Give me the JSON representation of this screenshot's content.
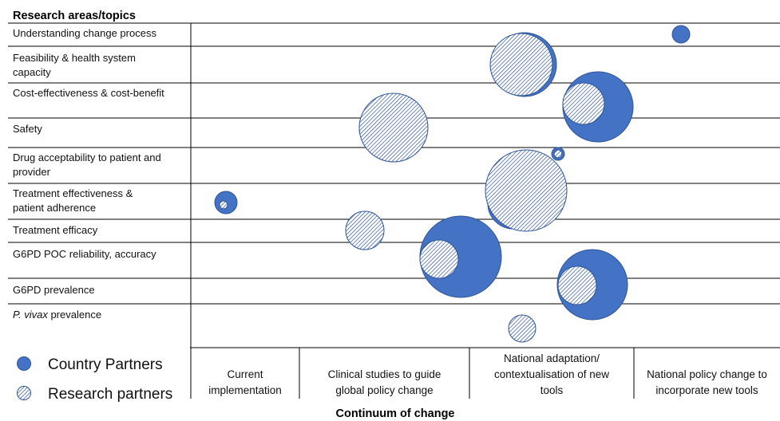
{
  "chart_data": {
    "type": "bubble",
    "title": "Research areas/topics",
    "xlabel": "Continuum of change",
    "rows": [
      [
        "Understanding change process"
      ],
      [
        "Feasibility & health system",
        "capacity"
      ],
      [
        "Cost-effectiveness & cost-benefit"
      ],
      [
        "Safety"
      ],
      [
        "Drug acceptability to patient and",
        "provider"
      ],
      [
        "Treatment effectiveness &",
        "patient adherence"
      ],
      [
        "Treatment efficacy"
      ],
      [
        "G6PD POC reliability, accuracy"
      ],
      [
        "G6PD prevalence"
      ],
      [
        "P. vivax prevalence"
      ]
    ],
    "columns": [
      [
        "Current",
        "implementation"
      ],
      [
        "Clinical studies to guide",
        "global policy change"
      ],
      [
        "National adaptation/",
        "contextualisation of new",
        "tools"
      ],
      [
        "National policy change to",
        "incorporate new tools"
      ]
    ],
    "legend": [
      {
        "name": "Country Partners",
        "style": "solid"
      },
      {
        "name": "Research partners",
        "style": "hatched"
      }
    ],
    "colors": {
      "country": "#4472C4",
      "research_stroke": "#2F5597",
      "grid": "#000000"
    },
    "series": [
      {
        "name": "Country Partners",
        "points": [
          {
            "row": 0,
            "col": 3.1,
            "size": 11
          },
          {
            "row": 1,
            "col": 2.4,
            "size": 40
          },
          {
            "row": 2,
            "col": 2.8,
            "size": 44
          },
          {
            "row": 3,
            "col": 1.4,
            "size": 14
          },
          {
            "row": 4,
            "col": 2.5,
            "size": 8
          },
          {
            "row": 5,
            "col": 2.3,
            "size": 32
          },
          {
            "row": 5,
            "col": 0.3,
            "size": 14
          },
          {
            "row": 6,
            "col": 1.3,
            "size": 8
          },
          {
            "row": 7,
            "col": 1.9,
            "size": 51
          },
          {
            "row": 8,
            "col": 2.7,
            "size": 44
          },
          {
            "row": 9,
            "col": 2.2,
            "size": 8
          }
        ]
      },
      {
        "name": "Research partners",
        "points": [
          {
            "row": 1,
            "col": 2.35,
            "size": 39
          },
          {
            "row": 2,
            "col": 2.7,
            "size": 26
          },
          {
            "row": 3,
            "col": 1.5,
            "size": 43
          },
          {
            "row": 4,
            "col": 2.5,
            "size": 5
          },
          {
            "row": 5,
            "col": 2.4,
            "size": 51
          },
          {
            "row": 5,
            "col": 0.3,
            "size": 5
          },
          {
            "row": 6,
            "col": 1.35,
            "size": 24
          },
          {
            "row": 7,
            "col": 1.85,
            "size": 24
          },
          {
            "row": 8,
            "col": 2.65,
            "size": 24
          },
          {
            "row": 9,
            "col": 2.25,
            "size": 17
          }
        ]
      }
    ]
  }
}
